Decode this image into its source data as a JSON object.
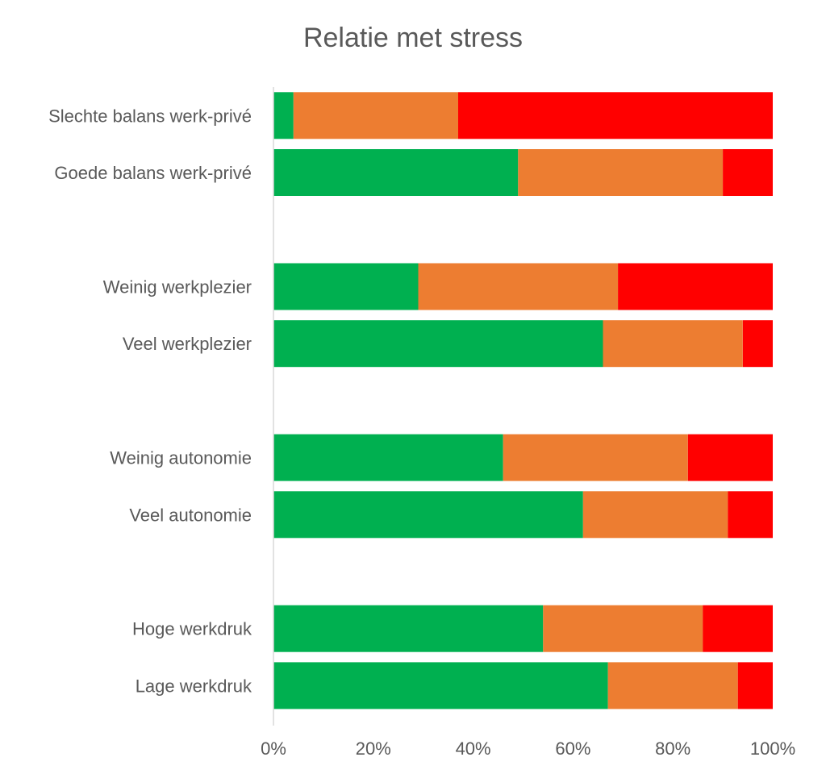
{
  "chart_data": {
    "type": "bar",
    "orientation": "horizontal",
    "stacked": "percent",
    "title": "Relatie met stress",
    "categories": [
      "Slechte balans werk-privé",
      "Goede balans werk-privé",
      "",
      "Weinig werkplezier",
      "Veel werkplezier",
      "",
      "Weinig autonomie",
      "Veel autonomie",
      "",
      "Hoge werkdruk",
      "Lage werkdruk"
    ],
    "series": [
      {
        "color": "#00B050",
        "values": [
          4,
          49,
          null,
          29,
          66,
          null,
          46,
          62,
          null,
          54,
          67
        ]
      },
      {
        "color": "#ED7D31",
        "values": [
          33,
          41,
          null,
          40,
          28,
          null,
          37,
          29,
          null,
          32,
          26
        ]
      },
      {
        "color": "#FF0000",
        "values": [
          63,
          10,
          null,
          31,
          6,
          null,
          17,
          9,
          null,
          14,
          7
        ]
      }
    ],
    "xticks": [
      "0%",
      "20%",
      "40%",
      "60%",
      "80%",
      "100%"
    ],
    "xlim": [
      0,
      100
    ],
    "grid": false,
    "legend": "none"
  }
}
